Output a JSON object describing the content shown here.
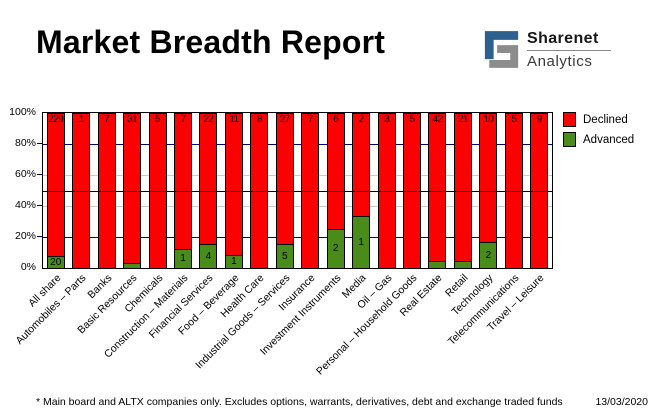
{
  "header": {
    "logo": {
      "brand": "Sharenet",
      "subtitle": "Analytics",
      "blue": "#2d5f8f",
      "gray": "#8c8c8c"
    }
  },
  "chart_data": {
    "type": "bar",
    "subtype": "100-percent-stacked-column",
    "title": "Market Breadth Report",
    "xlabel": "",
    "ylabel": "",
    "ylim": [
      0,
      100
    ],
    "ytick_labels": [
      "100%",
      "80%",
      "60%",
      "40%",
      "20%",
      "0%"
    ],
    "ytick_values": [
      100,
      80,
      60,
      40,
      20,
      0
    ],
    "reference_line_pct": 50,
    "legend_position": "top-right-outside",
    "grid": "horizontal dashes at 20/40/60/80, visible between bars",
    "gridline_navy": "#00007c",
    "gridline_gray": "#c9c9c9",
    "categories": [
      "All share",
      "Automobiles – Parts",
      "Banks",
      "Basic Resources",
      "Chemicals",
      "Construction – Materials",
      "Financial Services",
      "Food – Beverage",
      "Health Care",
      "Industrial Goods – Services",
      "Insurance",
      "Investment Instruments",
      "Media",
      "Oil – Gas",
      "Personal – Household Goods",
      "Real Estate",
      "Retail",
      "Technology",
      "Telecommunications",
      "Travel – Leisure"
    ],
    "series": [
      {
        "name": "Declined",
        "color": "#fb0202",
        "counts": [
          229,
          1,
          7,
          31,
          5,
          7,
          22,
          11,
          8,
          27,
          7,
          6,
          2,
          3,
          5,
          42,
          21,
          10,
          5,
          9
        ]
      },
      {
        "name": "Advanced",
        "color": "#4a8c1a",
        "pct_of_total": [
          8,
          0,
          0,
          3,
          0,
          12.5,
          15.4,
          8.3,
          0,
          15.6,
          0,
          25,
          33.3,
          0,
          0,
          4.5,
          4.5,
          16.7,
          0,
          0
        ],
        "bar_labels": [
          "20",
          "",
          "",
          "",
          "",
          "1",
          "4",
          "1",
          "",
          "5",
          "",
          "2",
          "1",
          "",
          "",
          "",
          "",
          "2",
          "",
          ""
        ]
      }
    ]
  },
  "footer": {
    "note": "* Main board and ALTX companies only. Excludes options, warrants, derivatives, debt and exchange traded funds",
    "date": "13/03/2020"
  }
}
